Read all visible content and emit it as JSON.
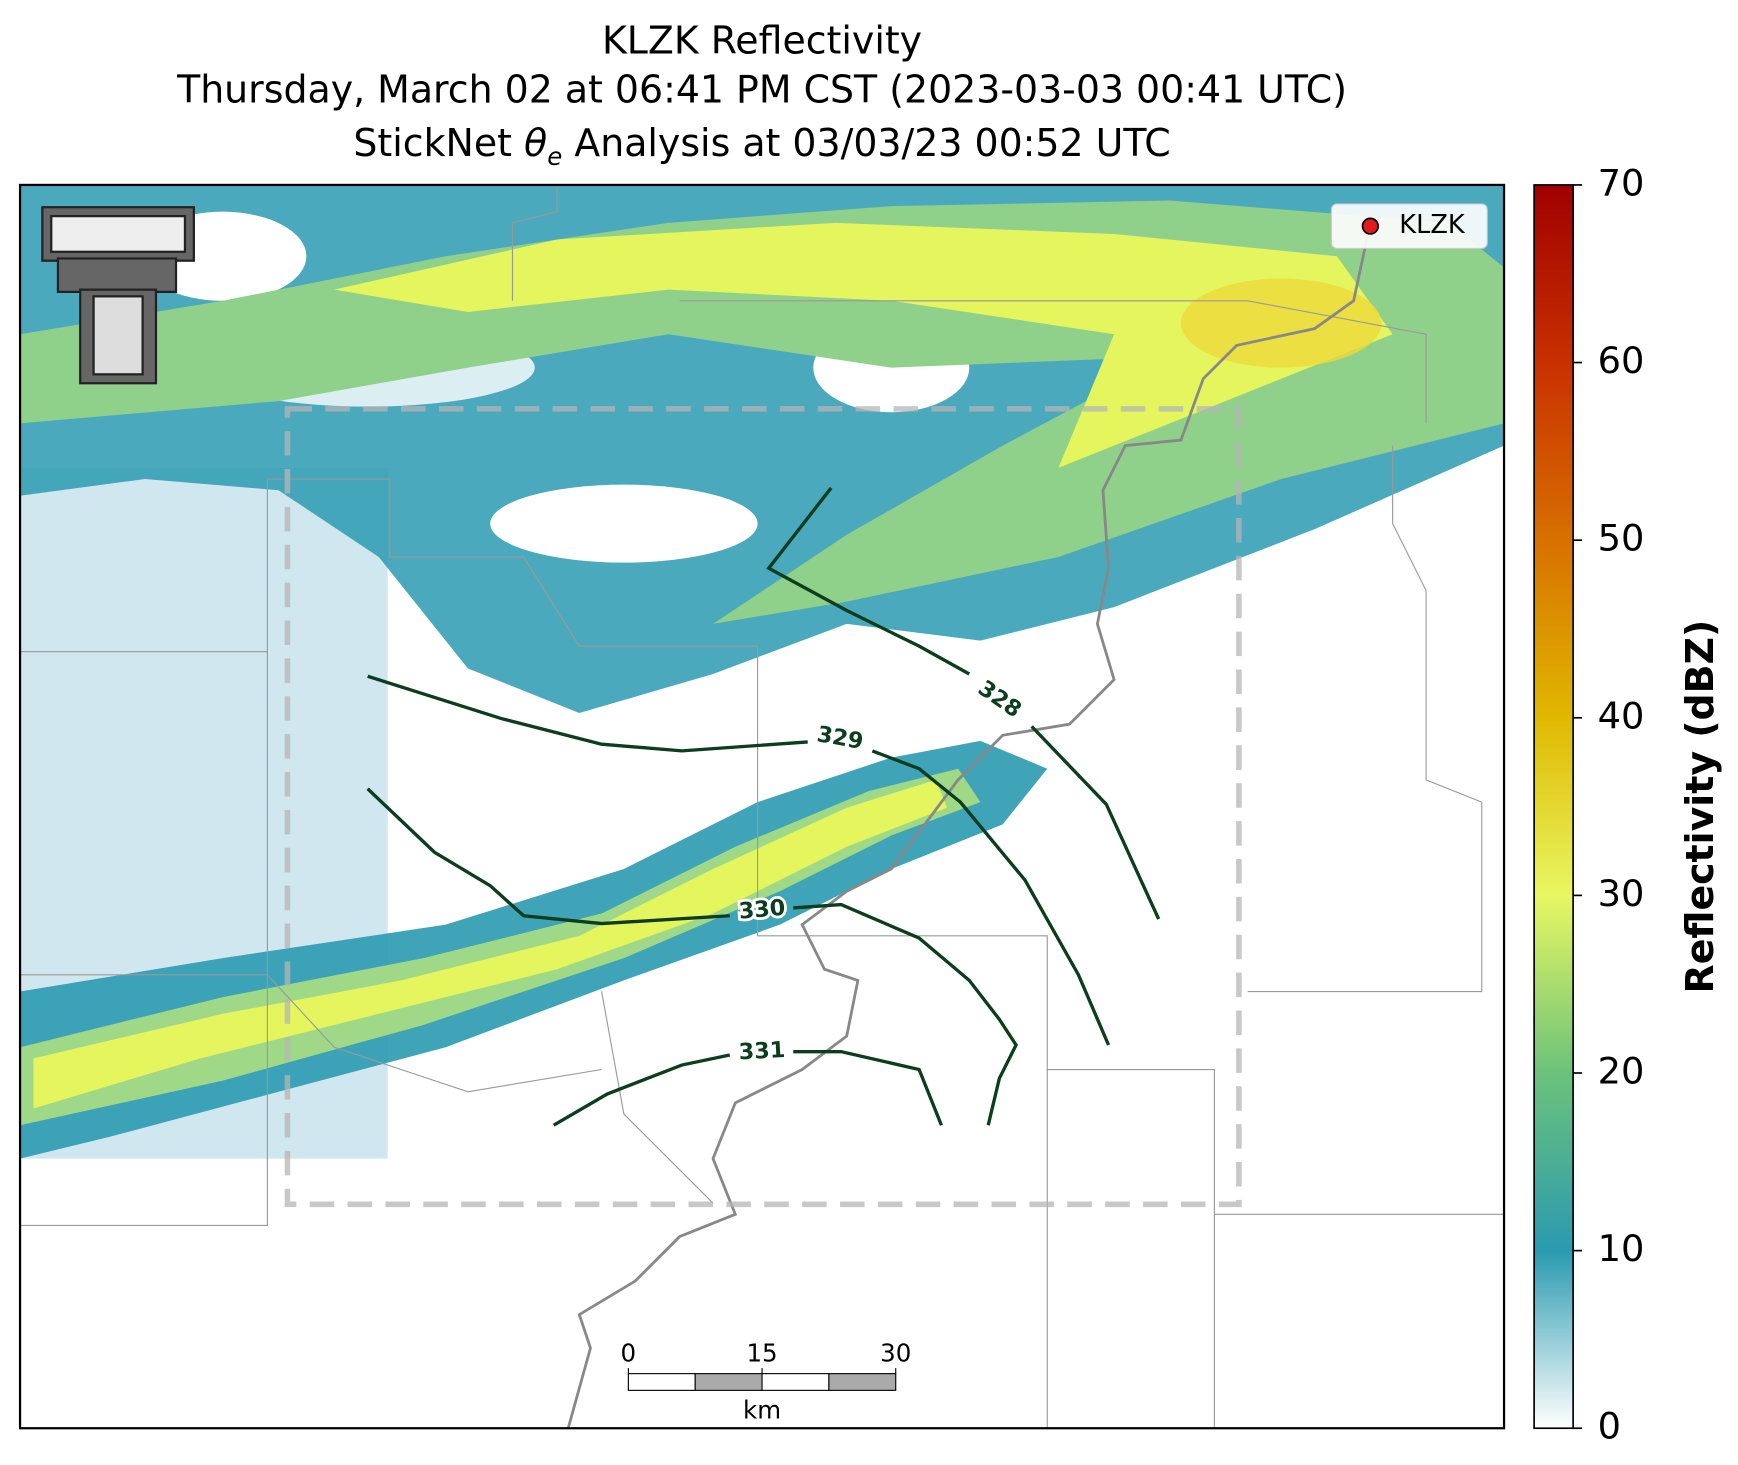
{
  "title": {
    "line1": "KLZK Reflectivity",
    "line2": "Thursday, March 02 at 06:41 PM CST (2023-03-03 00:41 UTC)",
    "line3": {
      "prefix": "StickNet ",
      "symbol": "θ",
      "subscript": "e",
      "suffix": " Analysis at 03/03/23 00:52 UTC"
    }
  },
  "colorbar": {
    "label": "Reflectivity (dBZ)",
    "lim": [
      0,
      70
    ],
    "ticks": [
      0,
      10,
      20,
      30,
      40,
      50,
      60,
      70
    ],
    "colors": [
      "#ffffff",
      "#2a9ab0",
      "#6cc27a",
      "#e8f762",
      "#e0b800",
      "#d87000",
      "#c83000",
      "#a00000"
    ]
  },
  "legend": {
    "label": "KLZK",
    "color": "#e31a1c"
  },
  "contours": [
    {
      "value": 328
    },
    {
      "value": 329
    },
    {
      "value": 330
    },
    {
      "value": 331
    }
  ],
  "scale_bar": {
    "ticks": [
      0,
      15,
      30
    ],
    "unit": "km"
  }
}
